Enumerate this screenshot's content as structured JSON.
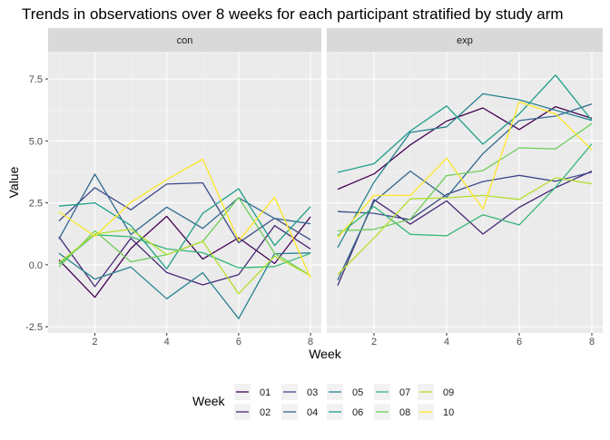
{
  "chart_data": {
    "type": "line",
    "title": "Trends in observations over 8 weeks for each participant stratified by study arm",
    "xlabel": "Week",
    "ylabel": "Value",
    "xlim": [
      0.7,
      8.3
    ],
    "ylim": [
      -2.75,
      8.6
    ],
    "x_ticks": [
      2,
      4,
      6,
      8
    ],
    "y_ticks": [
      -2.5,
      0.0,
      2.5,
      5.0,
      7.5
    ],
    "y_tick_labels": [
      "-2.5",
      "0.0",
      "2.5",
      "5.0",
      "7.5"
    ],
    "legend_title": "Week",
    "legend_position": "bottom",
    "grid": true,
    "colors": {
      "01": "#440154",
      "02": "#482878",
      "03": "#3E4A89",
      "04": "#31688E",
      "05": "#26828E",
      "06": "#1F9E89",
      "07": "#35B779",
      "08": "#6DCD59",
      "09": "#B4DE2C",
      "10": "#FDE725"
    },
    "legend_items": [
      "01",
      "02",
      "03",
      "04",
      "05",
      "06",
      "07",
      "08",
      "09",
      "10"
    ],
    "x": [
      1,
      2,
      3,
      4,
      5,
      6,
      7,
      8
    ],
    "panels": [
      {
        "name": "con",
        "series": [
          {
            "name": "01",
            "values": [
              0.2,
              -1.31,
              0.66,
              1.96,
              0.23,
              1.09,
              0.05,
              1.94
            ]
          },
          {
            "name": "02",
            "values": [
              1.13,
              -0.88,
              1.07,
              -0.31,
              -0.81,
              -0.4,
              1.58,
              0.64
            ]
          },
          {
            "name": "03",
            "values": [
              1.77,
              3.11,
              2.22,
              3.26,
              3.31,
              0.89,
              1.88,
              1.01
            ]
          },
          {
            "name": "04",
            "values": [
              1.04,
              3.66,
              1.22,
              2.33,
              1.47,
              2.7,
              1.87,
              1.66
            ]
          },
          {
            "name": "05",
            "values": [
              0.47,
              -0.58,
              -0.09,
              -1.37,
              -0.32,
              -2.17,
              0.45,
              0.48
            ]
          },
          {
            "name": "06",
            "values": [
              2.37,
              2.5,
              1.59,
              -0.16,
              2.08,
              3.07,
              0.78,
              2.35
            ]
          },
          {
            "name": "07",
            "values": [
              0.03,
              1.21,
              1.13,
              0.64,
              0.49,
              -0.12,
              -0.07,
              0.46
            ]
          },
          {
            "name": "08",
            "values": [
              -0.09,
              1.37,
              0.12,
              0.41,
              0.94,
              2.72,
              0.47,
              -0.44
            ]
          },
          {
            "name": "09",
            "values": [
              0.08,
              1.24,
              1.44,
              0.41,
              0.95,
              -1.17,
              0.35,
              -0.44
            ]
          },
          {
            "name": "10",
            "values": [
              2.14,
              1.15,
              2.52,
              3.44,
              4.26,
              0.97,
              2.73,
              -0.53
            ]
          }
        ]
      },
      {
        "name": "exp",
        "series": [
          {
            "name": "01",
            "values": [
              3.05,
              3.67,
              4.84,
              5.8,
              6.33,
              5.46,
              6.38,
              5.91
            ]
          },
          {
            "name": "02",
            "values": [
              -0.84,
              2.63,
              1.64,
              2.58,
              1.24,
              2.32,
              3.11,
              3.78
            ]
          },
          {
            "name": "03",
            "values": [
              2.15,
              2.08,
              1.82,
              2.84,
              3.36,
              3.61,
              3.37,
              3.74
            ]
          },
          {
            "name": "04",
            "values": [
              -0.62,
              2.54,
              3.78,
              2.73,
              4.49,
              5.82,
              6.0,
              6.49
            ]
          },
          {
            "name": "05",
            "values": [
              0.7,
              3.33,
              5.34,
              5.57,
              6.9,
              6.66,
              6.24,
              5.83
            ]
          },
          {
            "name": "06",
            "values": [
              3.73,
              4.08,
              5.4,
              6.41,
              4.87,
              6.09,
              7.66,
              5.83
            ]
          },
          {
            "name": "07",
            "values": [
              1.18,
              2.35,
              1.23,
              1.17,
              2.02,
              1.61,
              3.13,
              4.88
            ]
          },
          {
            "name": "08",
            "values": [
              1.37,
              1.43,
              1.84,
              3.6,
              3.8,
              4.72,
              4.68,
              5.7
            ]
          },
          {
            "name": "09",
            "values": [
              -0.4,
              1.08,
              2.66,
              2.7,
              2.8,
              2.64,
              3.51,
              3.27
            ]
          },
          {
            "name": "10",
            "values": [
              1.09,
              2.8,
              2.8,
              4.3,
              2.25,
              6.57,
              6.09,
              4.64
            ]
          }
        ]
      }
    ]
  }
}
